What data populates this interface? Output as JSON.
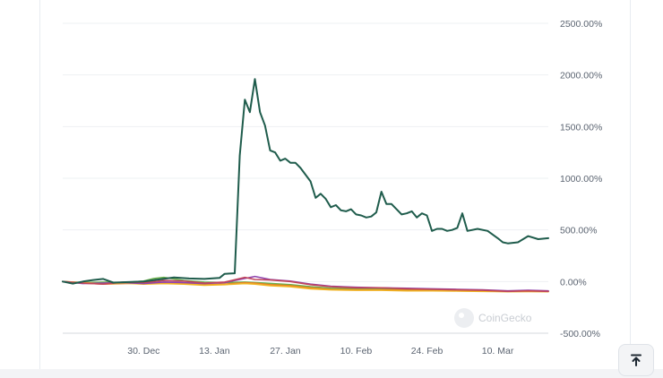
{
  "chart_data": {
    "type": "line",
    "title": "",
    "xlabel": "",
    "ylabel": "",
    "y_axis_position": "right",
    "ylim": [
      -500,
      2500
    ],
    "y_ticks": [
      2500,
      2000,
      1500,
      1000,
      500,
      0,
      -500
    ],
    "y_tick_labels": [
      "2500.00%",
      "2000.00%",
      "1500.00%",
      "1000.00%",
      "500.00%",
      "0.00%",
      "-500.00%"
    ],
    "x_range": [
      "2024-12-14",
      "2025-03-20"
    ],
    "x_ticks": [
      {
        "date": "2024-12-30",
        "label": "30. Dec"
      },
      {
        "date": "2025-01-13",
        "label": "13. Jan"
      },
      {
        "date": "2025-01-27",
        "label": "27. Jan"
      },
      {
        "date": "2025-02-10",
        "label": "10. Feb"
      },
      {
        "date": "2025-02-24",
        "label": "24. Feb"
      },
      {
        "date": "2025-03-10",
        "label": "10. Mar"
      }
    ],
    "grid": true,
    "watermark": "CoinGecko",
    "series": [
      {
        "color": "#1f5c4c",
        "points": [
          [
            "2024-12-14",
            0
          ],
          [
            "2024-12-16",
            -20
          ],
          [
            "2024-12-18",
            0
          ],
          [
            "2024-12-20",
            15
          ],
          [
            "2024-12-22",
            25
          ],
          [
            "2024-12-24",
            -10
          ],
          [
            "2024-12-27",
            -5
          ],
          [
            "2024-12-30",
            0
          ],
          [
            "2025-01-02",
            20
          ],
          [
            "2025-01-05",
            40
          ],
          [
            "2025-01-08",
            30
          ],
          [
            "2025-01-11",
            25
          ],
          [
            "2025-01-14",
            35
          ],
          [
            "2025-01-15",
            75
          ],
          [
            "2025-01-17",
            80
          ],
          [
            "2025-01-18",
            1220
          ],
          [
            "2025-01-19",
            1760
          ],
          [
            "2025-01-20",
            1640
          ],
          [
            "2025-01-21",
            1960
          ],
          [
            "2025-01-22",
            1640
          ],
          [
            "2025-01-23",
            1510
          ],
          [
            "2025-01-24",
            1270
          ],
          [
            "2025-01-25",
            1250
          ],
          [
            "2025-01-26",
            1170
          ],
          [
            "2025-01-27",
            1190
          ],
          [
            "2025-01-28",
            1150
          ],
          [
            "2025-01-29",
            1150
          ],
          [
            "2025-01-30",
            1100
          ],
          [
            "2025-02-01",
            970
          ],
          [
            "2025-02-02",
            810
          ],
          [
            "2025-02-03",
            850
          ],
          [
            "2025-02-04",
            800
          ],
          [
            "2025-02-05",
            720
          ],
          [
            "2025-02-06",
            740
          ],
          [
            "2025-02-07",
            690
          ],
          [
            "2025-02-08",
            680
          ],
          [
            "2025-02-09",
            700
          ],
          [
            "2025-02-10",
            650
          ],
          [
            "2025-02-11",
            640
          ],
          [
            "2025-02-12",
            620
          ],
          [
            "2025-02-13",
            630
          ],
          [
            "2025-02-14",
            670
          ],
          [
            "2025-02-15",
            870
          ],
          [
            "2025-02-16",
            750
          ],
          [
            "2025-02-17",
            750
          ],
          [
            "2025-02-18",
            700
          ],
          [
            "2025-02-19",
            650
          ],
          [
            "2025-02-20",
            660
          ],
          [
            "2025-02-21",
            680
          ],
          [
            "2025-02-22",
            620
          ],
          [
            "2025-02-23",
            660
          ],
          [
            "2025-02-24",
            640
          ],
          [
            "2025-02-25",
            490
          ],
          [
            "2025-02-26",
            510
          ],
          [
            "2025-02-27",
            510
          ],
          [
            "2025-02-28",
            490
          ],
          [
            "2025-03-01",
            500
          ],
          [
            "2025-03-02",
            520
          ],
          [
            "2025-03-03",
            660
          ],
          [
            "2025-03-04",
            490
          ],
          [
            "2025-03-06",
            510
          ],
          [
            "2025-03-08",
            490
          ],
          [
            "2025-03-10",
            420
          ],
          [
            "2025-03-11",
            380
          ],
          [
            "2025-03-12",
            370
          ],
          [
            "2025-03-14",
            380
          ],
          [
            "2025-03-16",
            440
          ],
          [
            "2025-03-18",
            410
          ],
          [
            "2025-03-20",
            420
          ]
        ]
      },
      {
        "color": "#c0455b",
        "points": [
          [
            "2024-12-14",
            0
          ],
          [
            "2024-12-18",
            -15
          ],
          [
            "2024-12-22",
            -25
          ],
          [
            "2024-12-26",
            -5
          ],
          [
            "2024-12-30",
            -10
          ],
          [
            "2025-01-03",
            10
          ],
          [
            "2025-01-07",
            5
          ],
          [
            "2025-01-11",
            -15
          ],
          [
            "2025-01-15",
            -5
          ],
          [
            "2025-01-19",
            40
          ],
          [
            "2025-01-21",
            20
          ],
          [
            "2025-01-24",
            15
          ],
          [
            "2025-01-28",
            0
          ],
          [
            "2025-02-01",
            -30
          ],
          [
            "2025-02-05",
            -50
          ],
          [
            "2025-02-10",
            -60
          ],
          [
            "2025-02-15",
            -60
          ],
          [
            "2025-02-20",
            -70
          ],
          [
            "2025-02-25",
            -75
          ],
          [
            "2025-03-02",
            -80
          ],
          [
            "2025-03-07",
            -85
          ],
          [
            "2025-03-12",
            -95
          ],
          [
            "2025-03-16",
            -90
          ],
          [
            "2025-03-20",
            -95
          ]
        ]
      },
      {
        "color": "#8e44ad",
        "points": [
          [
            "2024-12-14",
            0
          ],
          [
            "2024-12-18",
            -20
          ],
          [
            "2024-12-22",
            -15
          ],
          [
            "2024-12-26",
            -10
          ],
          [
            "2024-12-30",
            -20
          ],
          [
            "2025-01-03",
            -5
          ],
          [
            "2025-01-07",
            -10
          ],
          [
            "2025-01-11",
            -20
          ],
          [
            "2025-01-15",
            -10
          ],
          [
            "2025-01-19",
            30
          ],
          [
            "2025-01-21",
            50
          ],
          [
            "2025-01-24",
            20
          ],
          [
            "2025-01-28",
            5
          ],
          [
            "2025-02-01",
            -25
          ],
          [
            "2025-02-05",
            -45
          ],
          [
            "2025-02-10",
            -55
          ],
          [
            "2025-02-15",
            -60
          ],
          [
            "2025-02-20",
            -65
          ],
          [
            "2025-02-25",
            -70
          ],
          [
            "2025-03-02",
            -75
          ],
          [
            "2025-03-07",
            -80
          ],
          [
            "2025-03-12",
            -90
          ],
          [
            "2025-03-16",
            -85
          ],
          [
            "2025-03-20",
            -90
          ]
        ]
      },
      {
        "color": "#f0b323",
        "points": [
          [
            "2024-12-14",
            0
          ],
          [
            "2024-12-18",
            -10
          ],
          [
            "2024-12-22",
            -20
          ],
          [
            "2024-12-26",
            -15
          ],
          [
            "2024-12-30",
            -25
          ],
          [
            "2025-01-03",
            -20
          ],
          [
            "2025-01-07",
            -25
          ],
          [
            "2025-01-11",
            -35
          ],
          [
            "2025-01-15",
            -30
          ],
          [
            "2025-01-19",
            -20
          ],
          [
            "2025-01-21",
            -25
          ],
          [
            "2025-01-24",
            -40
          ],
          [
            "2025-01-28",
            -50
          ],
          [
            "2025-02-01",
            -70
          ],
          [
            "2025-02-05",
            -80
          ],
          [
            "2025-02-10",
            -85
          ],
          [
            "2025-02-15",
            -85
          ],
          [
            "2025-02-20",
            -90
          ],
          [
            "2025-02-25",
            -90
          ],
          [
            "2025-03-02",
            -92
          ],
          [
            "2025-03-07",
            -95
          ],
          [
            "2025-03-12",
            -98
          ],
          [
            "2025-03-16",
            -97
          ],
          [
            "2025-03-20",
            -98
          ]
        ]
      },
      {
        "color": "#e67e22",
        "points": [
          [
            "2024-12-14",
            0
          ],
          [
            "2024-12-18",
            -15
          ],
          [
            "2024-12-22",
            -25
          ],
          [
            "2024-12-26",
            -20
          ],
          [
            "2024-12-30",
            -15
          ],
          [
            "2025-01-03",
            -10
          ],
          [
            "2025-01-07",
            -20
          ],
          [
            "2025-01-11",
            -30
          ],
          [
            "2025-01-15",
            -25
          ],
          [
            "2025-01-19",
            -10
          ],
          [
            "2025-01-21",
            -15
          ],
          [
            "2025-01-24",
            -30
          ],
          [
            "2025-01-28",
            -40
          ],
          [
            "2025-02-01",
            -60
          ],
          [
            "2025-02-05",
            -75
          ],
          [
            "2025-02-10",
            -80
          ],
          [
            "2025-02-15",
            -80
          ],
          [
            "2025-02-20",
            -85
          ],
          [
            "2025-02-25",
            -88
          ],
          [
            "2025-03-02",
            -90
          ],
          [
            "2025-03-07",
            -92
          ],
          [
            "2025-03-12",
            -96
          ],
          [
            "2025-03-16",
            -95
          ],
          [
            "2025-03-20",
            -96
          ]
        ]
      },
      {
        "color": "#6ab04c",
        "points": [
          [
            "2024-12-14",
            0
          ],
          [
            "2024-12-18",
            -10
          ],
          [
            "2024-12-22",
            -5
          ],
          [
            "2024-12-26",
            -10
          ],
          [
            "2024-12-30",
            5
          ],
          [
            "2025-01-01",
            30
          ],
          [
            "2025-01-03",
            40
          ],
          [
            "2025-01-05",
            25
          ],
          [
            "2025-01-07",
            10
          ],
          [
            "2025-01-11",
            -5
          ],
          [
            "2025-01-15",
            -10
          ],
          [
            "2025-01-19",
            -5
          ],
          [
            "2025-01-23",
            -15
          ],
          [
            "2025-01-28",
            -30
          ],
          [
            "2025-02-01",
            -50
          ],
          [
            "2025-02-05",
            -65
          ],
          [
            "2025-02-10",
            -70
          ],
          [
            "2025-02-15",
            -72
          ],
          [
            "2025-02-20",
            -78
          ],
          [
            "2025-02-25",
            -80
          ],
          [
            "2025-03-02",
            -85
          ],
          [
            "2025-03-07",
            -88
          ],
          [
            "2025-03-12",
            -92
          ],
          [
            "2025-03-20",
            -93
          ]
        ]
      }
    ]
  },
  "controls": {
    "scroll_top_icon": "arrow-up-to-line-icon"
  }
}
